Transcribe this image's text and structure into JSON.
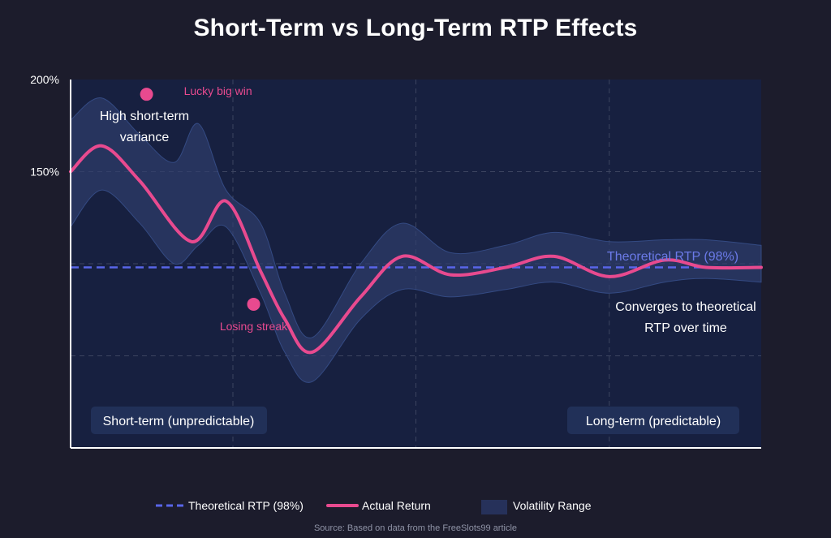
{
  "chart_data": {
    "type": "line",
    "title": "Short-Term vs Long-Term RTP Effects",
    "xlabel": "",
    "ylabel": "",
    "ylim": [
      0,
      200
    ],
    "xlim": [
      0,
      100
    ],
    "y_ticks": [
      {
        "value": 200,
        "label": "200%"
      },
      {
        "value": 150,
        "label": "150%"
      }
    ],
    "theoretical_rtp": {
      "name": "Theoretical RTP (98%)",
      "value": 98
    },
    "series": [
      {
        "name": "Actual Return",
        "x": [
          0,
          4.5,
          10,
          17.5,
          22.5,
          27.5,
          31,
          35,
          42,
          48,
          55,
          63,
          70,
          78,
          86,
          92,
          100
        ],
        "values": [
          150,
          164,
          145,
          112,
          134,
          96,
          70,
          52,
          82,
          104,
          94,
          98,
          104,
          93,
          102,
          98,
          98
        ]
      }
    ],
    "volatility_range": {
      "name": "Volatility Range",
      "x": [
        0,
        4.5,
        10,
        15,
        18.5,
        22.5,
        27.5,
        31,
        35,
        42,
        48,
        55,
        63,
        70,
        78,
        86,
        92,
        100
      ],
      "upper": [
        178,
        190,
        170,
        155,
        176,
        140,
        122,
        84,
        60,
        100,
        122,
        106,
        110,
        117,
        112,
        113,
        113,
        110
      ],
      "lower": [
        120,
        140,
        122,
        100,
        110,
        120,
        84,
        52,
        36,
        70,
        86,
        82,
        86,
        90,
        84,
        90,
        92,
        90
      ]
    },
    "grid": true,
    "legend": {
      "position": "bottom",
      "items": [
        "Theoretical RTP (98%)",
        "Actual Return",
        "Volatility Range"
      ]
    },
    "annotations": {
      "lucky_big_win": {
        "label": "Lucky big win",
        "x": 11,
        "y": 192
      },
      "losing_streak": {
        "label": "Losing streak",
        "x": 26.5,
        "y": 78
      },
      "high_variance": [
        "High short-term",
        "variance"
      ],
      "converges": [
        "Converges to theoretical",
        "RTP over time"
      ],
      "theoretical_label": "Theoretical RTP (98%)"
    },
    "periods": {
      "short_term": "Short-term (unpredictable)",
      "long_term": "Long-term (predictable)"
    },
    "colors": {
      "line": "#e84a8f",
      "rtp": "#5865e8",
      "band": "#2f3f6e",
      "plot_bg": "#172040",
      "grid": "#3c4460"
    }
  },
  "source": "Source: Based on data from the FreeSlots99 article"
}
